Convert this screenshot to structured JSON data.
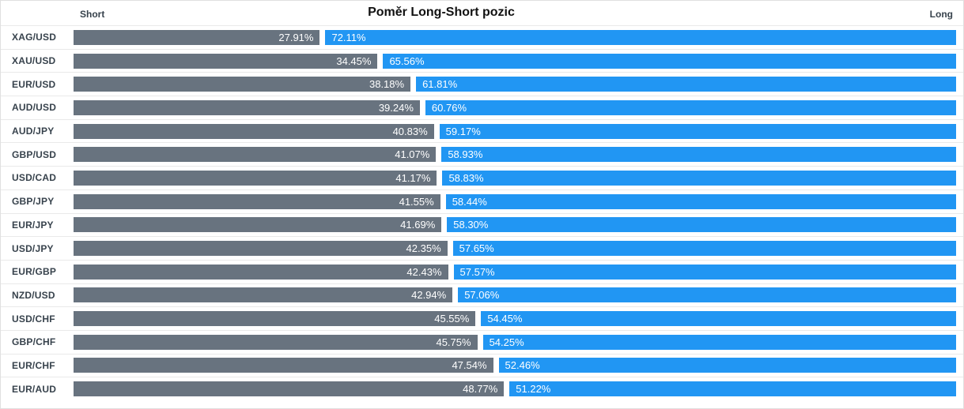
{
  "chart_data": {
    "type": "bar",
    "orientation": "horizontal",
    "stacked": true,
    "title": "Poměr Long-Short pozic",
    "xlim": [
      0,
      100
    ],
    "value_unit": "%",
    "grid": false,
    "legend_position": "top (Short left, Long right)",
    "categories": [
      "XAG/USD",
      "XAU/USD",
      "EUR/USD",
      "AUD/USD",
      "AUD/JPY",
      "GBP/USD",
      "USD/CAD",
      "GBP/JPY",
      "EUR/JPY",
      "USD/JPY",
      "EUR/GBP",
      "NZD/USD",
      "USD/CHF",
      "GBP/CHF",
      "EUR/CHF",
      "EUR/AUD"
    ],
    "series": [
      {
        "name": "Short",
        "color": "#68737F",
        "values": [
          27.91,
          34.45,
          38.18,
          39.24,
          40.83,
          41.07,
          41.17,
          41.55,
          41.69,
          42.35,
          42.43,
          42.94,
          45.55,
          45.75,
          47.54,
          48.77
        ]
      },
      {
        "name": "Long",
        "color": "#2196F3",
        "values": [
          72.11,
          65.56,
          61.81,
          60.76,
          59.17,
          58.93,
          58.83,
          58.44,
          58.3,
          57.65,
          57.57,
          57.06,
          54.45,
          54.25,
          52.46,
          51.22
        ]
      }
    ],
    "colors": {
      "row_label": "#37424c",
      "separator": "#e9e9e9",
      "border": "#e0e0e0",
      "bar_value_text": "#ffffff"
    }
  }
}
